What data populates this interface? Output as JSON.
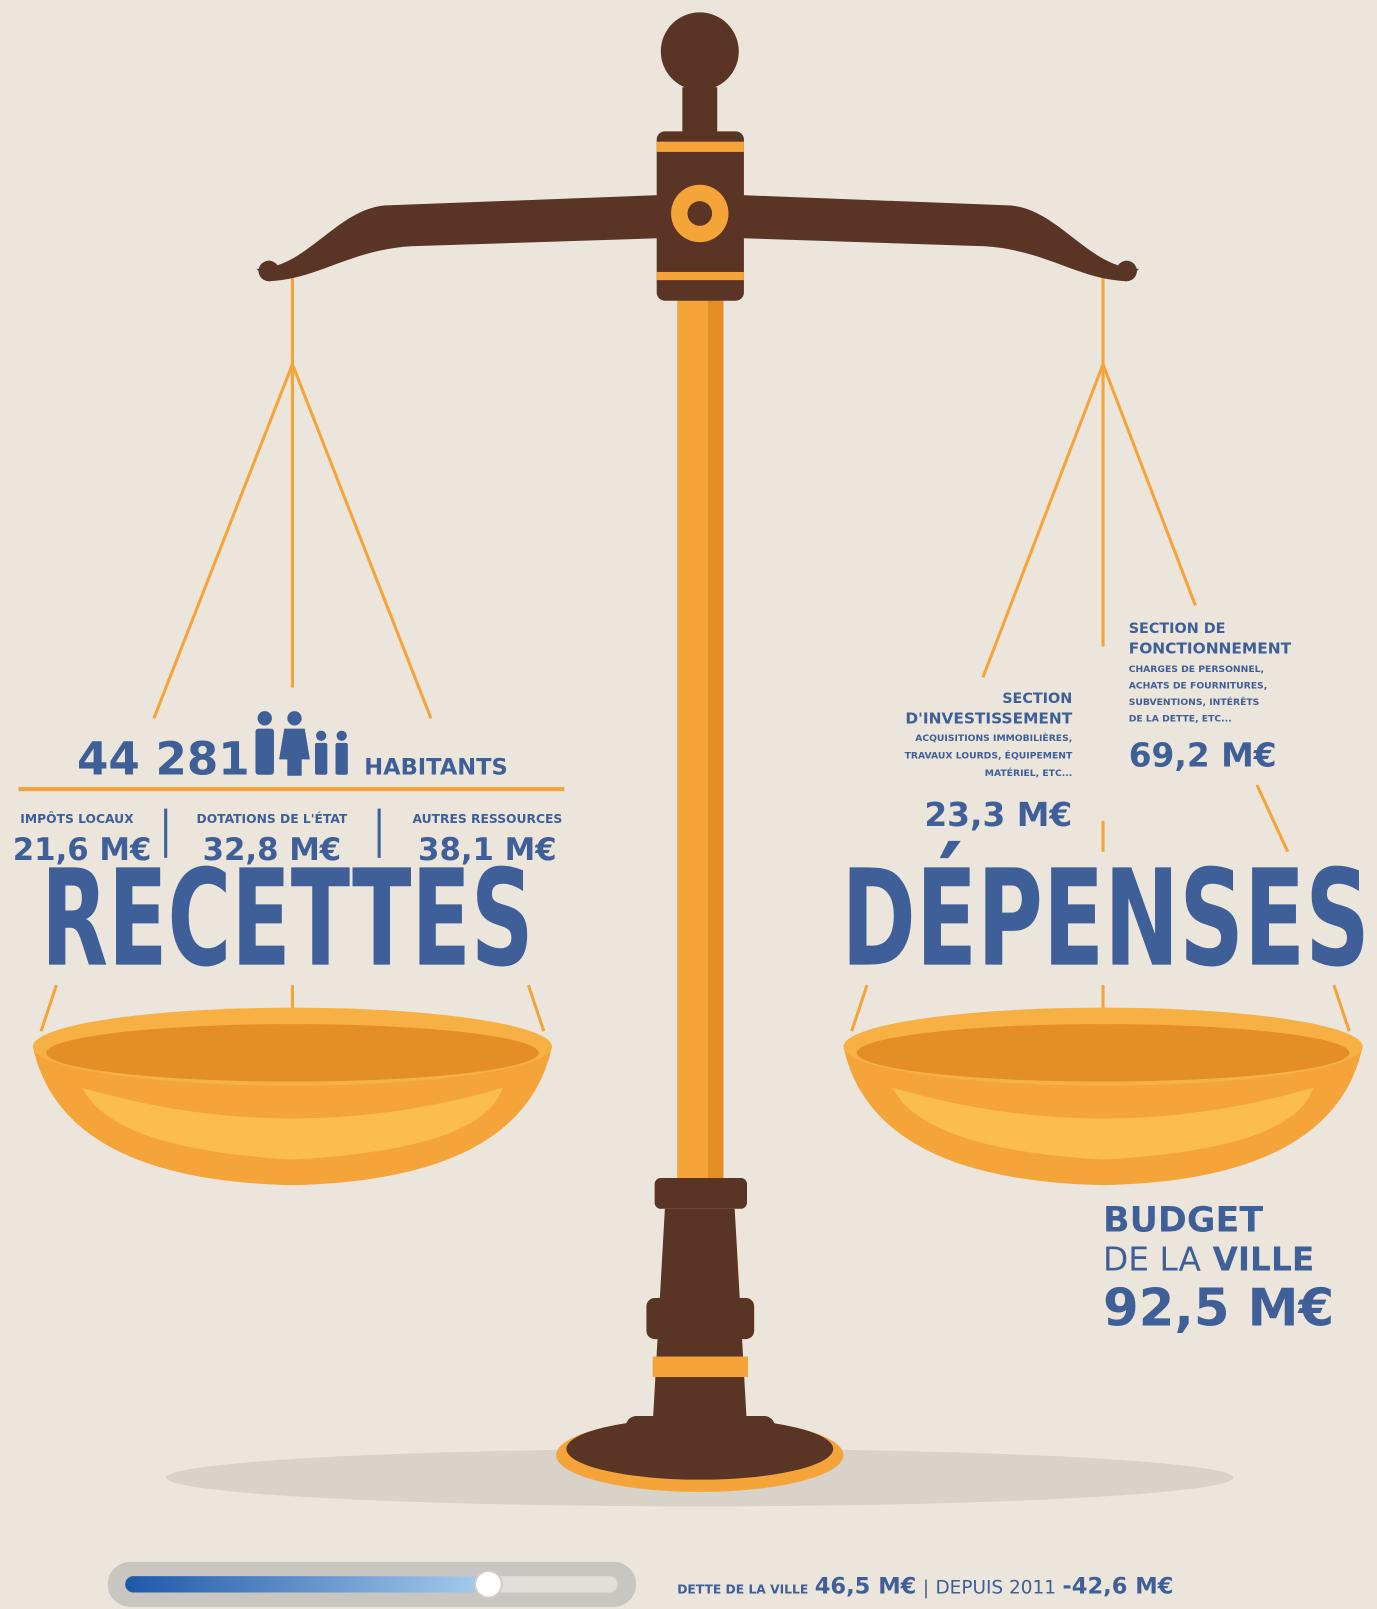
{
  "habitants": {
    "count": "44 281",
    "label": "HABITANTS"
  },
  "recettes": {
    "title": "RECETTES",
    "items": [
      {
        "label": "IMPÔTS LOCAUX",
        "amount": "21,6 M€"
      },
      {
        "label": "DOTATIONS DE L'ÉTAT",
        "amount": "32,8 M€"
      },
      {
        "label": "AUTRES RESSOURCES",
        "amount": "38,1 M€"
      }
    ]
  },
  "depenses": {
    "title": "DÉPENSES",
    "investissement": {
      "title_lines": [
        "SECTION",
        "D'INVESTISSEMENT"
      ],
      "description_lines": [
        "ACQUISITIONS IMMOBILIÈRES,",
        "TRAVAUX LOURDS, ÉQUIPEMENT",
        "MATÉRIEL, ETC..."
      ],
      "amount": "23,3 M€"
    },
    "fonctionnement": {
      "title_lines": [
        "SECTION DE",
        "FONCTIONNEMENT"
      ],
      "description_lines": [
        "CHARGES DE PERSONNEL,",
        "ACHATS DE FOURNITURES,",
        "SUBVENTIONS, INTÉRÊTS",
        "DE LA DETTE, ETC..."
      ],
      "amount": "69,2 M€"
    }
  },
  "budget": {
    "line1": "BUDGET",
    "line2a": "DE LA",
    "line2b": "VILLE",
    "amount": "92,5 M€"
  },
  "dette": {
    "label": "DETTE DE LA VILLE",
    "amount": "46,5 M€",
    "since_label": "DEPUIS 2011",
    "since_amount": "-42,6 M€"
  }
}
